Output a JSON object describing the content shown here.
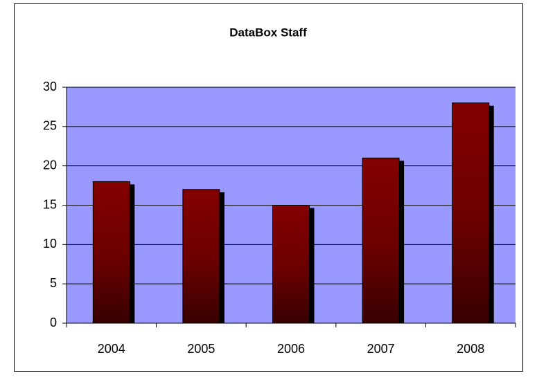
{
  "chart_data": {
    "type": "bar",
    "title": "DataBox Staff",
    "categories": [
      "2004",
      "2005",
      "2006",
      "2007",
      "2008"
    ],
    "values": [
      18,
      17,
      15,
      21,
      28
    ],
    "color": "#800000",
    "ylim": [
      0,
      30
    ],
    "yticks": [
      0,
      5,
      10,
      15,
      20,
      25,
      30
    ],
    "grid": true
  }
}
